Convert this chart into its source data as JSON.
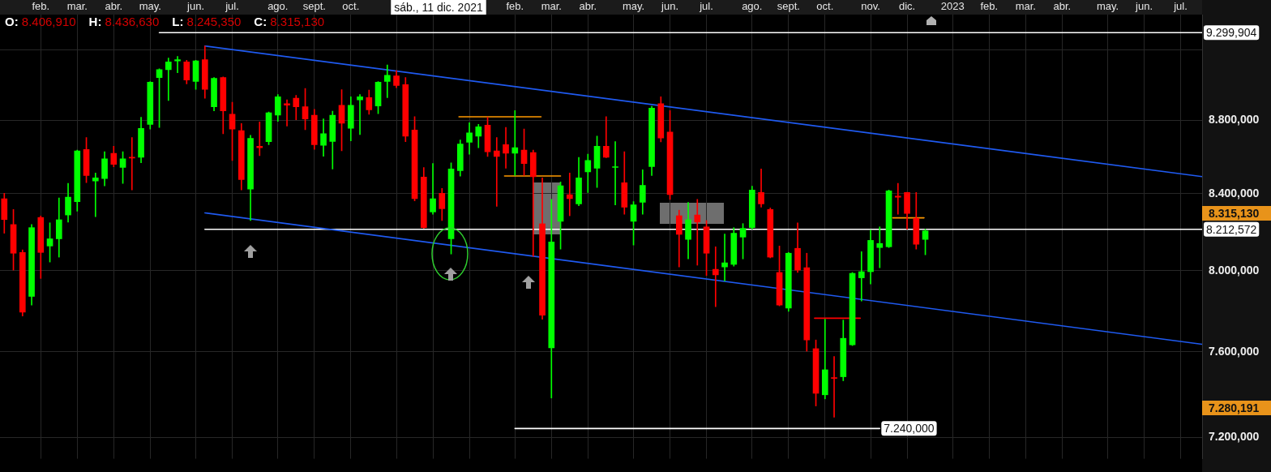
{
  "chart_data": {
    "type": "candlestick",
    "x": [
      "2021-01-09",
      "2021-01-16",
      "2021-01-23",
      "2021-01-30",
      "2021-02-06",
      "2021-02-13",
      "2021-02-20",
      "2021-02-27",
      "2021-03-06",
      "2021-03-13",
      "2021-03-20",
      "2021-03-27",
      "2021-04-03",
      "2021-04-10",
      "2021-04-17",
      "2021-04-24",
      "2021-05-01",
      "2021-05-08",
      "2021-05-15",
      "2021-05-22",
      "2021-05-29",
      "2021-06-05",
      "2021-06-12",
      "2021-06-19",
      "2021-06-26",
      "2021-07-03",
      "2021-07-10",
      "2021-07-17",
      "2021-07-24",
      "2021-07-31",
      "2021-08-07",
      "2021-08-14",
      "2021-08-21",
      "2021-08-28",
      "2021-09-04",
      "2021-09-11",
      "2021-09-18",
      "2021-09-25",
      "2021-10-02",
      "2021-10-09",
      "2021-10-16",
      "2021-10-23",
      "2021-10-30",
      "2021-11-06",
      "2021-11-13",
      "2021-11-20",
      "2021-11-27",
      "2021-12-04",
      "2021-12-11",
      "2021-12-18",
      "2021-12-25",
      "2022-01-01",
      "2022-01-08",
      "2022-01-15",
      "2022-01-22",
      "2022-01-29",
      "2022-02-05",
      "2022-02-12",
      "2022-02-19",
      "2022-02-26",
      "2022-03-05",
      "2022-03-12",
      "2022-03-19",
      "2022-03-26",
      "2022-04-02",
      "2022-04-09",
      "2022-04-16",
      "2022-04-23",
      "2022-04-30",
      "2022-05-07",
      "2022-05-14",
      "2022-05-21",
      "2022-05-28",
      "2022-06-04",
      "2022-06-11",
      "2022-06-18",
      "2022-06-25",
      "2022-07-02",
      "2022-07-09",
      "2022-07-16",
      "2022-07-23",
      "2022-07-30",
      "2022-08-06",
      "2022-08-13",
      "2022-08-20",
      "2022-08-27",
      "2022-09-03",
      "2022-09-10",
      "2022-09-17",
      "2022-09-24",
      "2022-10-01",
      "2022-10-08",
      "2022-10-15",
      "2022-10-22",
      "2022-10-29",
      "2022-11-05",
      "2022-11-12",
      "2022-11-19",
      "2022-11-26",
      "2022-12-03",
      "2022-12-10",
      "2022-12-17"
    ],
    "ohlc": [
      [
        8373,
        8402,
        8192,
        8263
      ],
      [
        8237,
        8316,
        8003,
        8089
      ],
      [
        8093,
        8106,
        7774,
        7793
      ],
      [
        7871,
        8237,
        7828,
        8221
      ],
      [
        8274,
        8282,
        7961,
        8093
      ],
      [
        8126,
        8246,
        8044,
        8163
      ],
      [
        8163,
        8377,
        8069,
        8262
      ],
      [
        8287,
        8454,
        8250,
        8381
      ],
      [
        8357,
        8634,
        8307,
        8630
      ],
      [
        8638,
        8703,
        8458,
        8497
      ],
      [
        8467,
        8510,
        8278,
        8484
      ],
      [
        8480,
        8625,
        8441,
        8587
      ],
      [
        8617,
        8655,
        8544,
        8557
      ],
      [
        8540,
        8625,
        8454,
        8587
      ],
      [
        8595,
        8703,
        8419,
        8591
      ],
      [
        8595,
        8815,
        8565,
        8754
      ],
      [
        8776,
        9017,
        8750,
        9013
      ],
      [
        9040,
        9090,
        8759,
        9085
      ],
      [
        9085,
        9152,
        8909,
        9130
      ],
      [
        9135,
        9161,
        9067,
        9143
      ],
      [
        9130,
        9139,
        9004,
        9026
      ],
      [
        9017,
        9139,
        8972,
        9135
      ],
      [
        9143,
        9222,
        8922,
        8972
      ],
      [
        8874,
        9040,
        8851,
        9035
      ],
      [
        9040,
        9044,
        8724,
        8851
      ],
      [
        8832,
        8900,
        8578,
        8750
      ],
      [
        8741,
        8780,
        8419,
        8475
      ],
      [
        8424,
        8716,
        8258,
        8699
      ],
      [
        8655,
        8789,
        8604,
        8647
      ],
      [
        8681,
        8845,
        8664,
        8840
      ],
      [
        8827,
        8943,
        8793,
        8930
      ],
      [
        8892,
        8913,
        8767,
        8883
      ],
      [
        8922,
        8939,
        8802,
        8874
      ],
      [
        8874,
        8978,
        8746,
        8806
      ],
      [
        8827,
        8860,
        8638,
        8664
      ],
      [
        8661,
        8806,
        8601,
        8724
      ],
      [
        8682,
        8849,
        8532,
        8827
      ],
      [
        8883,
        8971,
        8630,
        8782
      ],
      [
        8754,
        8930,
        8685,
        8883
      ],
      [
        8913,
        8943,
        8720,
        8930
      ],
      [
        8926,
        8968,
        8832,
        8857
      ],
      [
        8879,
        9017,
        8836,
        9013
      ],
      [
        9017,
        9112,
        8926,
        9053
      ],
      [
        9049,
        9080,
        8982,
        8995
      ],
      [
        8999,
        9040,
        8681,
        8711
      ],
      [
        8745,
        8819,
        8361,
        8373
      ],
      [
        8488,
        8540,
        8217,
        8221
      ],
      [
        8303,
        8561,
        8291,
        8373
      ],
      [
        8402,
        8427,
        8258,
        8320
      ],
      [
        8163,
        8565,
        8085,
        8532
      ],
      [
        8523,
        8690,
        8493,
        8668
      ],
      [
        8677,
        8785,
        8612,
        8729
      ],
      [
        8711,
        8776,
        8647,
        8763
      ],
      [
        8772,
        8815,
        8600,
        8625
      ],
      [
        8630,
        8703,
        8332,
        8600
      ],
      [
        8664,
        8759,
        8536,
        8617
      ],
      [
        8617,
        8853,
        8497,
        8647
      ],
      [
        8634,
        8750,
        8497,
        8561
      ],
      [
        8621,
        8634,
        8073,
        8490
      ],
      [
        8241,
        8484,
        7758,
        7778
      ],
      [
        7619,
        8369,
        7381,
        8147
      ],
      [
        8254,
        8462,
        8110,
        8441
      ],
      [
        8394,
        8510,
        8283,
        8373
      ],
      [
        8345,
        8595,
        8336,
        8484
      ],
      [
        8516,
        8612,
        8406,
        8578
      ],
      [
        8536,
        8711,
        8432,
        8655
      ],
      [
        8655,
        8819,
        8593,
        8595
      ],
      [
        8540,
        8681,
        8340,
        8544
      ],
      [
        8458,
        8625,
        8291,
        8328
      ],
      [
        8254,
        8357,
        8131,
        8340
      ],
      [
        8354,
        8527,
        8291,
        8444
      ],
      [
        8545,
        8877,
        8497,
        8867
      ],
      [
        8892,
        8930,
        8679,
        8700
      ],
      [
        8733,
        8853,
        8369,
        8395
      ],
      [
        8283,
        8312,
        8019,
        8186
      ],
      [
        8160,
        8353,
        8060,
        8262
      ],
      [
        8287,
        8369,
        8028,
        8250
      ],
      [
        8225,
        8258,
        7976,
        8089
      ],
      [
        8007,
        8122,
        7820,
        7979
      ],
      [
        8019,
        8188,
        7948,
        8040
      ],
      [
        8032,
        8221,
        8023,
        8192
      ],
      [
        8172,
        8242,
        8060,
        8217
      ],
      [
        8221,
        8439,
        8213,
        8419
      ],
      [
        8406,
        8532,
        8328,
        8345
      ],
      [
        8316,
        8324,
        8065,
        8069
      ],
      [
        7991,
        8126,
        7824,
        7828
      ],
      [
        7813,
        8093,
        7797,
        8089
      ],
      [
        8114,
        8246,
        7991,
        8003
      ],
      [
        8015,
        8089,
        7603,
        7657
      ],
      [
        7615,
        7657,
        7344,
        7403
      ],
      [
        7396,
        7758,
        7377,
        7514
      ],
      [
        7477,
        7577,
        7292,
        7473
      ],
      [
        7481,
        7754,
        7462,
        7665
      ],
      [
        7634,
        7991,
        7630,
        7987
      ],
      [
        7964,
        8097,
        7848,
        7995
      ],
      [
        7995,
        8209,
        7933,
        8155
      ],
      [
        8118,
        8225,
        8015,
        8139
      ],
      [
        8122,
        8419,
        8118,
        8414
      ],
      [
        8386,
        8454,
        8291,
        8381
      ],
      [
        8406,
        8407,
        8213,
        8295
      ],
      [
        8270,
        8406,
        8110,
        8135
      ],
      [
        8160,
        8213,
        8081,
        8204
      ]
    ],
    "colors": [
      "#ff0000",
      "#ff0000",
      "#ff0000",
      "#00ff00",
      "#ff0000",
      "#00ff00",
      "#00ff00",
      "#00ff00",
      "#00ff00",
      "#ff0000",
      "#00ff00",
      "#00ff00",
      "#ff0000",
      "#00ff00",
      "#ff0000",
      "#00ff00",
      "#00ff00",
      "#00ff00",
      "#00ff00",
      "#00ff00",
      "#ff0000",
      "#00ff00",
      "#ff0000",
      "#00ff00",
      "#ff0000",
      "#ff0000",
      "#ff0000",
      "#00ff00",
      "#ff0000",
      "#00ff00",
      "#00ff00",
      "#ff0000",
      "#ff0000",
      "#ff0000",
      "#ff0000",
      "#00ff00",
      "#00ff00",
      "#ff0000",
      "#00ff00",
      "#00ff00",
      "#ff0000",
      "#00ff00",
      "#00ff00",
      "#ff0000",
      "#ff0000",
      "#ff0000",
      "#ff0000",
      "#00ff00",
      "#ff0000",
      "#00ff00",
      "#00ff00",
      "#00ff00",
      "#00ff00",
      "#ff0000",
      "#ff0000",
      "#ff0000",
      "#00ff00",
      "#ff0000",
      "#ff0000",
      "#ff0000",
      "#00ff00",
      "#00ff00",
      "#ff0000",
      "#00ff00",
      "#00ff00",
      "#00ff00",
      "#ff0000",
      "#00ff00",
      "#ff0000",
      "#00ff00",
      "#00ff00",
      "#00ff00",
      "#ff0000",
      "#ff0000",
      "#ff0000",
      "#00ff00",
      "#ff0000",
      "#ff0000",
      "#ff0000",
      "#00ff00",
      "#00ff00",
      "#00ff00",
      "#00ff00",
      "#ff0000",
      "#ff0000",
      "#ff0000",
      "#00ff00",
      "#ff0000",
      "#ff0000",
      "#ff0000",
      "#00ff00",
      "#ff0000",
      "#00ff00",
      "#00ff00",
      "#00ff00",
      "#00ff00",
      "#00ff00",
      "#00ff00",
      "#ff0000",
      "#ff0000",
      "#ff0000",
      "#00ff00"
    ],
    "series": [
      {
        "type": "line",
        "color": "#1f5af0",
        "x": [
          "2021-06-12",
          "2023-07-17T11:00"
        ],
        "values": [
          9222,
          8491
        ]
      },
      {
        "type": "line",
        "color": "#1f5af0",
        "x": [
          "2021-06-12",
          "2023-07-17T11:00"
        ],
        "values": [
          8298,
          7636
        ]
      },
      {
        "type": "line",
        "color": "#ffffff",
        "x": [
          "2021-05-08",
          "2023-07-17T11:00"
        ],
        "values": [
          9299.904,
          9299.904
        ],
        "value_labels": [
          null,
          "9.299,904"
        ]
      },
      {
        "type": "line",
        "color": "#ffffff",
        "x": [
          "2021-06-12",
          "2023-07-17T11:00"
        ],
        "values": [
          8212.572,
          8212.572
        ],
        "value_labels": [
          null,
          "8.212,572"
        ]
      },
      {
        "type": "line",
        "color": "#ffffff",
        "x": [
          "2022-02-05",
          "2022-11-12"
        ],
        "values": [
          7240,
          7240
        ],
        "value_labels": [
          null,
          "7.240,000"
        ]
      },
      {
        "type": "line",
        "color": "#ff9900",
        "x": [
          "2021-12-24",
          "2022-02-25"
        ],
        "values": [
          8818,
          8818
        ]
      },
      {
        "type": "line",
        "color": "#ff9900",
        "x": [
          "2022-01-28",
          "2022-03-12"
        ],
        "values": [
          8494,
          8494
        ]
      },
      {
        "type": "line",
        "color": "#ff9900",
        "x": [
          "2022-11-22",
          "2022-12-16"
        ],
        "values": [
          8272,
          8272
        ]
      },
      {
        "type": "line",
        "color": "#ff0000",
        "x": [
          "2022-09-23",
          "2022-10-28"
        ],
        "values": [
          7763,
          7763
        ]
      }
    ],
    "xlim": [
      "2021-01-05T17:00",
      "2023-07-17T11:00"
    ],
    "xticks": [
      {
        "value": "2021-02-06",
        "label": "feb."
      },
      {
        "value": "2021-03-06",
        "label": "mar."
      },
      {
        "value": "2021-04-03",
        "label": "abr."
      },
      {
        "value": "2021-05-01",
        "label": "may."
      },
      {
        "value": "2021-06-05",
        "label": "jun."
      },
      {
        "value": "2021-07-03",
        "label": "jul."
      },
      {
        "value": "2021-08-07",
        "label": "ago."
      },
      {
        "value": "2021-09-04",
        "label": "sept."
      },
      {
        "value": "2021-10-02",
        "label": "oct."
      },
      {
        "value": "2021-11-06",
        "label": null
      },
      {
        "value": "2021-12-04",
        "label": null
      },
      {
        "value": "2022-01-01",
        "label": null
      },
      {
        "value": "2022-02-05",
        "label": "feb."
      },
      {
        "value": "2022-03-05",
        "label": "mar."
      },
      {
        "value": "2022-04-02",
        "label": "abr."
      },
      {
        "value": "2022-05-07",
        "label": "may."
      },
      {
        "value": "2022-06-04",
        "label": "jun."
      },
      {
        "value": "2022-07-02",
        "label": "jul."
      },
      {
        "value": "2022-08-06",
        "label": "ago."
      },
      {
        "value": "2022-09-03",
        "label": "sept."
      },
      {
        "value": "2022-10-01",
        "label": "oct."
      },
      {
        "value": "2022-11-05",
        "label": "nov."
      },
      {
        "value": "2022-12-03",
        "label": "dic."
      },
      {
        "value": "2023-01-07",
        "label": "2023"
      },
      {
        "value": "2023-02-04",
        "label": "feb."
      },
      {
        "value": "2023-03-04",
        "label": "mar."
      },
      {
        "value": "2023-04-01",
        "label": "abr."
      },
      {
        "value": "2023-05-06",
        "label": "may."
      },
      {
        "value": "2023-06-03",
        "label": "jun."
      },
      {
        "value": "2023-07-01",
        "label": "jul."
      }
    ],
    "ylim": [
      7103,
      9407
    ],
    "yticks": [
      {
        "value": 7200,
        "label": "7.200,000"
      },
      {
        "value": 7600,
        "label": "7.600,000"
      },
      {
        "value": 8000,
        "label": "8.000,000"
      },
      {
        "value": 8400,
        "label": "8.400,000"
      },
      {
        "value": 8800,
        "label": "8.800,000"
      },
      {
        "value": 9200,
        "label": null
      }
    ],
    "log": true,
    "grid": true,
    "annotations": [
      "O: 8.406,910",
      "H: 8.436,630",
      "L: 8.245,350",
      "C: 8.315,130",
      "sáb., 11 dic. 2021",
      "8.315,130",
      "7.280,191"
    ]
  }
}
